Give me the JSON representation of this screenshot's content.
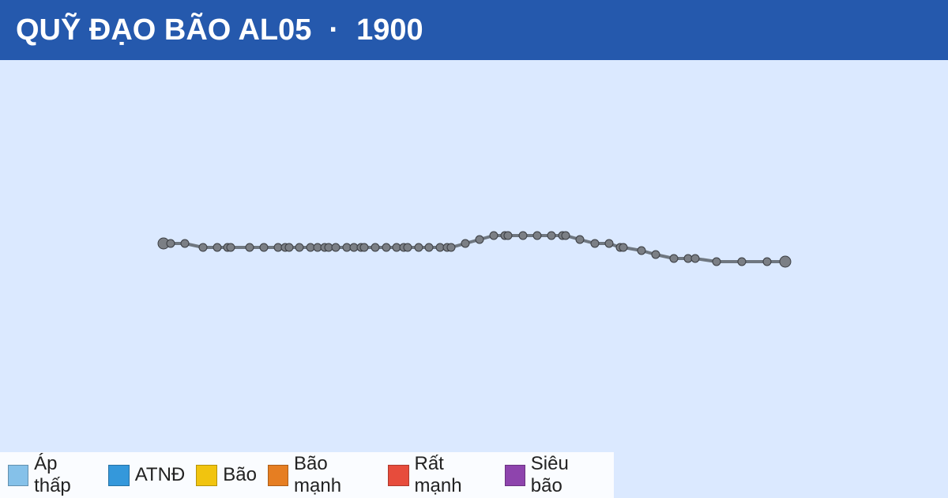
{
  "header": {
    "title": "QUỸ ĐẠO BÃO AL05",
    "separator": "·",
    "year": "1900"
  },
  "legend": [
    {
      "label": "Áp thấp",
      "color": "#85c1e9"
    },
    {
      "label": "ATNĐ",
      "color": "#3498db"
    },
    {
      "label": "Bão",
      "color": "#f1c40f"
    },
    {
      "label": "Bão mạnh",
      "color": "#e67e22"
    },
    {
      "label": "Rất mạnh",
      "color": "#e74c3c"
    },
    {
      "label": "Siêu bão",
      "color": "#8e44ad"
    }
  ]
}
